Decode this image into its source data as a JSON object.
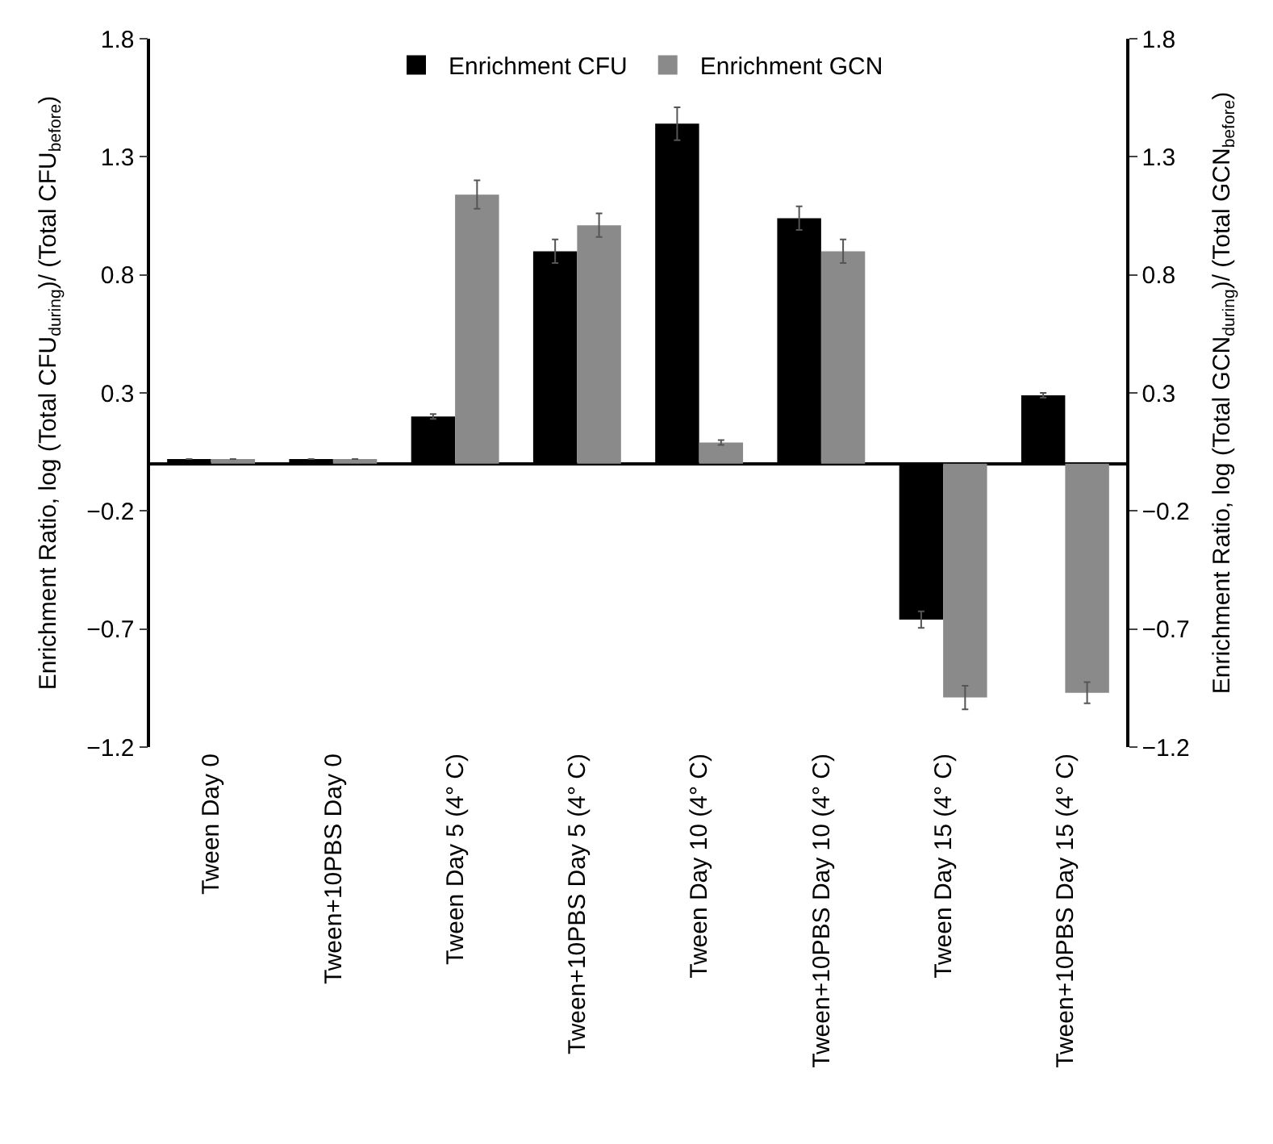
{
  "chart_data": {
    "type": "bar",
    "categories": [
      "Tween Day 0",
      "Tween+10PBS Day 0",
      "Tween Day 5 (4° C)",
      "Tween+10PBS Day 5 (4° C)",
      "Tween Day 10 (4° C)",
      "Tween+10PBS Day 10 (4° C)",
      "Tween Day 15 (4° C)",
      "Tween+10PBS Day 15 (4° C)"
    ],
    "series": [
      {
        "name": "Enrichment CFU",
        "color": "#000000",
        "values": [
          0.02,
          0.02,
          0.2,
          0.9,
          1.44,
          1.04,
          -0.66,
          0.29
        ],
        "errors": [
          null,
          null,
          0.01,
          0.05,
          0.07,
          0.05,
          0.035,
          0.01
        ]
      },
      {
        "name": "Enrichment GCN",
        "color": "#8a8a8a",
        "values": [
          0.02,
          0.02,
          1.14,
          1.01,
          0.09,
          0.9,
          -0.99,
          -0.97
        ],
        "errors": [
          null,
          null,
          0.06,
          0.05,
          0.01,
          0.05,
          0.05,
          0.045
        ]
      }
    ],
    "ylabel": "Enrichment Ratio, log (Total CFU$_{during}$)/ (Total CFU$_{before}$)",
    "y2label": "Enrichment Ratio, log (Total GCN$_{during}$)/ (Total GCN$_{before}$)",
    "ylim": [
      -1.2,
      1.8
    ],
    "yticks": [
      {
        "value": -1.2,
        "label": "−1.2"
      },
      {
        "value": -0.7,
        "label": "−0.7"
      },
      {
        "value": -0.2,
        "label": "−0.2"
      },
      0.3,
      0.8,
      1.3,
      1.8
    ],
    "y2lim": [
      -1.2,
      1.8
    ],
    "y2ticks": [
      {
        "value": -1.2,
        "label": "−1.2"
      },
      {
        "value": -0.7,
        "label": "−0.7"
      },
      {
        "value": -0.2,
        "label": "−0.2"
      },
      0.3,
      0.8,
      1.3,
      1.8
    ],
    "legend": "top"
  }
}
